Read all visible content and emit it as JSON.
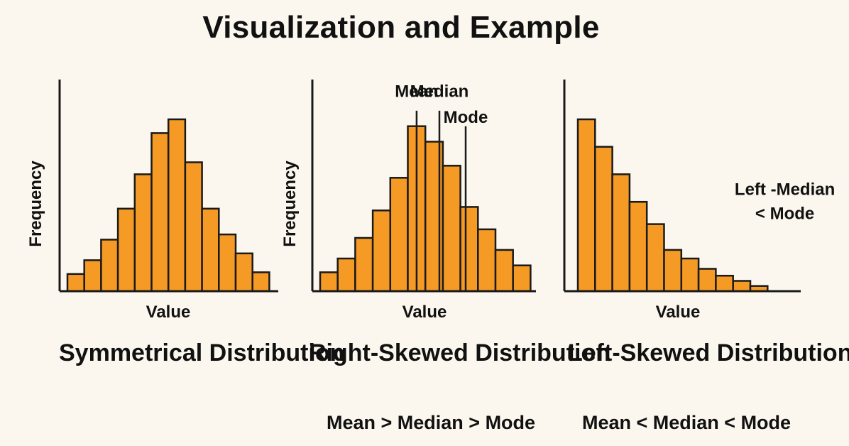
{
  "page": {
    "title": "Visualization and Example",
    "accent_color": "#f59a25",
    "bar_edge_color": "#1a1a1a"
  },
  "chart_data": [
    {
      "type": "bar",
      "title": "Symmetrical Distribution",
      "subtitle": "",
      "xlabel": "Value",
      "ylabel": "Frequency",
      "ylim": [
        0,
        10
      ],
      "values": [
        1,
        1.8,
        3,
        4.8,
        6.8,
        9.2,
        10,
        7.5,
        4.8,
        3.3,
        2.2,
        1.1
      ],
      "annotations": []
    },
    {
      "type": "bar",
      "title": "Right-Skewed Distribution",
      "subtitle": "Mean > Median > Mode",
      "xlabel": "Value",
      "ylabel": "Frequency",
      "ylim": [
        0,
        10
      ],
      "values": [
        1.1,
        1.9,
        3.1,
        4.7,
        6.6,
        9.6,
        8.7,
        7.3,
        4.9,
        3.6,
        2.4,
        1.5
      ],
      "annotations": [
        {
          "text": "Mean",
          "x": 5.5,
          "y_top": 10.5,
          "y_label": 11.3,
          "anchor": "middle"
        },
        {
          "text": "Median",
          "x": 6.8,
          "y_top": 10.5,
          "y_label": 11.3,
          "anchor": "middle"
        },
        {
          "text": "Mode",
          "x": 8.3,
          "y_top": 9.6,
          "y_label": 9.8,
          "anchor": "middle"
        }
      ]
    },
    {
      "type": "bar",
      "title": "Left-Skewed Distribution",
      "subtitle": "Mean < Median < Mode",
      "xlabel": "Value",
      "ylabel": "",
      "ylim": [
        0,
        10
      ],
      "values": [
        10,
        8.4,
        6.8,
        5.2,
        3.9,
        2.4,
        1.9,
        1.3,
        0.9,
        0.6,
        0.3
      ],
      "annotations": [
        {
          "text": "Left -Median",
          "x": 12,
          "y_top": null,
          "y_label": 5.6,
          "anchor": "middle"
        },
        {
          "text": "< Mode",
          "x": 12,
          "y_top": null,
          "y_label": 4.2,
          "anchor": "middle"
        }
      ]
    }
  ]
}
